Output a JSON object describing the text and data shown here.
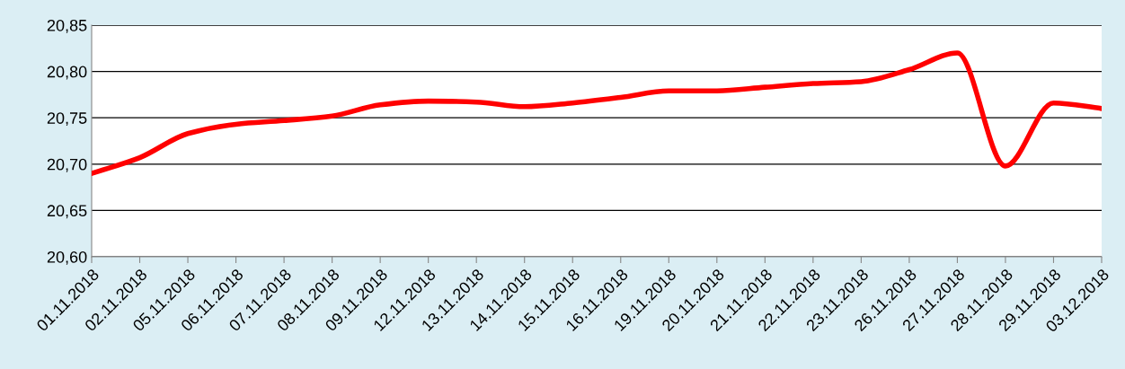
{
  "chart_data": {
    "type": "line",
    "categories": [
      "01.11.2018",
      "02.11.2018",
      "05.11.2018",
      "06.11.2018",
      "07.11.2018",
      "08.11.2018",
      "09.11.2018",
      "12.11.2018",
      "13.11.2018",
      "14.11.2018",
      "15.11.2018",
      "16.11.2018",
      "19.11.2018",
      "20.11.2018",
      "21.11.2018",
      "22.11.2018",
      "23.11.2018",
      "26.11.2018",
      "27.11.2018",
      "28.11.2018",
      "29.11.2018",
      "03.12.2018"
    ],
    "series": [
      {
        "color": "#ff0000",
        "values": [
          20.69,
          20.707,
          20.733,
          20.743,
          20.747,
          20.752,
          20.764,
          20.768,
          20.767,
          20.762,
          20.766,
          20.772,
          20.779,
          20.779,
          20.783,
          20.787,
          20.789,
          20.802,
          20.82,
          20.698,
          20.766,
          20.76
        ]
      }
    ],
    "ylim": [
      20.6,
      20.85
    ],
    "yticks": [
      {
        "value": 20.6,
        "label": "20,60"
      },
      {
        "value": 20.65,
        "label": "20,65"
      },
      {
        "value": 20.7,
        "label": "20,70"
      },
      {
        "value": 20.75,
        "label": "20,75"
      },
      {
        "value": 20.8,
        "label": "20,80"
      },
      {
        "value": 20.85,
        "label": "20,85"
      }
    ],
    "grid": "y",
    "legend": false,
    "marker": "none",
    "line_style": "solid"
  }
}
